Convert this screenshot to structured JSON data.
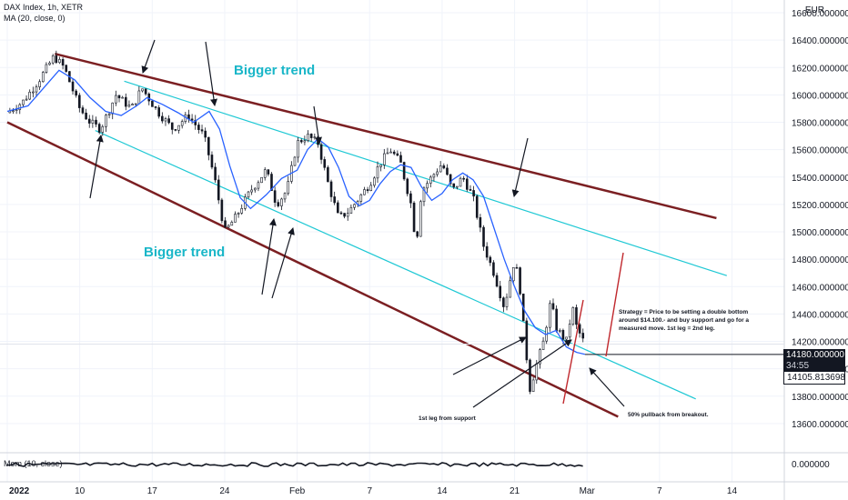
{
  "legend": {
    "title": "DAX Index, 1h, XETR",
    "indicator": "MA (20, close, 0)",
    "currency": "EUR",
    "momentum": "Mom (10, close)"
  },
  "price_labels": {
    "current": "14180.000000",
    "countdown": "34:55",
    "ma_value": "14105.813698",
    "momentum_zero": "0.000000"
  },
  "colors": {
    "channel": "#7b1f22",
    "inner": "#1ec8d4",
    "ma": "#2962ff",
    "candles": "#131722",
    "trend_text": "#19b6c8",
    "up_arrow": "#c0282d"
  },
  "annotations": {
    "bigger_trend_top": "Bigger trend",
    "bigger_trend_bottom": "Bigger trend",
    "strategy": [
      "Strategy = Price to be setting a double bottom",
      "around $14.100.- and buy support and go for a",
      "measured move. 1st leg = 2nd leg."
    ],
    "first_leg": "1st leg from support",
    "pullback": "50% pullback from breakout."
  },
  "chart_data": {
    "type": "line",
    "title": "DAX Index, 1h, XETR",
    "ylabel": "EUR",
    "ylim": [
      13480,
      16680
    ],
    "y_ticks": [
      13600,
      13800,
      14000,
      14200,
      14400,
      14600,
      14800,
      15000,
      15200,
      15400,
      15600,
      15800,
      16000,
      16200,
      16400,
      16600
    ],
    "x_ticks": [
      {
        "label": "2022",
        "day": 0
      },
      {
        "label": "10",
        "day": 7
      },
      {
        "label": "17",
        "day": 14
      },
      {
        "label": "24",
        "day": 21
      },
      {
        "label": "Feb",
        "day": 28
      },
      {
        "label": "7",
        "day": 35
      },
      {
        "label": "14",
        "day": 42
      },
      {
        "label": "21",
        "day": 49
      },
      {
        "label": "Mar",
        "day": 56
      },
      {
        "label": "7",
        "day": 63
      },
      {
        "label": "14",
        "day": 70
      }
    ],
    "xlim_days": [
      0,
      74
    ],
    "series": [
      {
        "name": "MA (20, close, 0)",
        "points": [
          [
            0,
            15880
          ],
          [
            2,
            15920
          ],
          [
            3.5,
            16050
          ],
          [
            5,
            16180
          ],
          [
            6.5,
            16110
          ],
          [
            8,
            15980
          ],
          [
            9.5,
            15880
          ],
          [
            11,
            15850
          ],
          [
            12.5,
            15920
          ],
          [
            13.5,
            15980
          ],
          [
            15,
            15930
          ],
          [
            16.5,
            15870
          ],
          [
            18,
            15800
          ],
          [
            19.5,
            15880
          ],
          [
            20.5,
            15750
          ],
          [
            21.5,
            15480
          ],
          [
            22.5,
            15250
          ],
          [
            23.5,
            15170
          ],
          [
            25,
            15270
          ],
          [
            26.5,
            15390
          ],
          [
            28,
            15450
          ],
          [
            29,
            15600
          ],
          [
            30,
            15680
          ],
          [
            31,
            15620
          ],
          [
            32,
            15470
          ],
          [
            33,
            15260
          ],
          [
            34,
            15190
          ],
          [
            35,
            15230
          ],
          [
            36,
            15350
          ],
          [
            37,
            15440
          ],
          [
            38,
            15490
          ],
          [
            39,
            15470
          ],
          [
            40,
            15330
          ],
          [
            41,
            15230
          ],
          [
            42,
            15280
          ],
          [
            43,
            15380
          ],
          [
            44,
            15430
          ],
          [
            45,
            15380
          ],
          [
            46,
            15260
          ],
          [
            47,
            15030
          ],
          [
            48,
            14800
          ],
          [
            49,
            14600
          ],
          [
            50,
            14420
          ],
          [
            51,
            14300
          ],
          [
            52,
            14250
          ],
          [
            53,
            14280
          ],
          [
            54,
            14160
          ],
          [
            55,
            14120
          ],
          [
            55.8,
            14106
          ]
        ]
      },
      {
        "name": "close",
        "points": [
          [
            0,
            15870
          ],
          [
            1.5,
            15950
          ],
          [
            3,
            16100
          ],
          [
            4.5,
            16280
          ],
          [
            5.5,
            16200
          ],
          [
            7,
            15900
          ],
          [
            8,
            15800
          ],
          [
            9,
            15750
          ],
          [
            10.5,
            16000
          ],
          [
            12,
            15900
          ],
          [
            13,
            16050
          ],
          [
            14.5,
            15880
          ],
          [
            16,
            15750
          ],
          [
            17.5,
            15850
          ],
          [
            19,
            15700
          ],
          [
            20,
            15400
          ],
          [
            21,
            15000
          ],
          [
            22,
            15100
          ],
          [
            23.5,
            15300
          ],
          [
            25,
            15450
          ],
          [
            26,
            15200
          ],
          [
            27,
            15300
          ],
          [
            28,
            15650
          ],
          [
            29,
            15700
          ],
          [
            30,
            15650
          ],
          [
            31,
            15350
          ],
          [
            32,
            15100
          ],
          [
            33,
            15150
          ],
          [
            34,
            15250
          ],
          [
            35,
            15350
          ],
          [
            36,
            15500
          ],
          [
            37,
            15600
          ],
          [
            38,
            15500
          ],
          [
            39,
            15200
          ],
          [
            39.5,
            14900
          ],
          [
            40,
            15300
          ],
          [
            41,
            15400
          ],
          [
            42,
            15500
          ],
          [
            43,
            15300
          ],
          [
            44,
            15400
          ],
          [
            45,
            15250
          ],
          [
            46,
            14900
          ],
          [
            47,
            14700
          ],
          [
            48,
            14450
          ],
          [
            49,
            14800
          ],
          [
            49.5,
            14600
          ],
          [
            50,
            14200
          ],
          [
            50.5,
            13850
          ],
          [
            51,
            14000
          ],
          [
            51.8,
            14200
          ],
          [
            52.5,
            14500
          ],
          [
            53,
            14300
          ],
          [
            54,
            14200
          ],
          [
            54.6,
            14450
          ],
          [
            55,
            14300
          ],
          [
            55.8,
            14180
          ]
        ]
      }
    ],
    "momentum": {
      "name": "Mom (10, close)",
      "value_at_end": 0
    }
  }
}
